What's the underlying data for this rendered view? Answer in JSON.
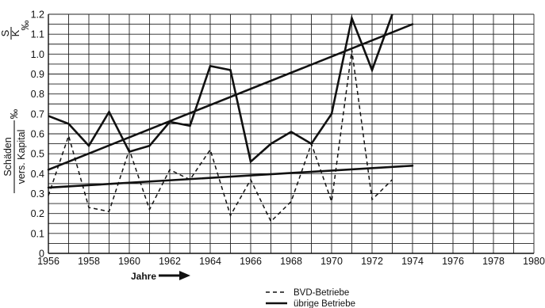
{
  "chart_data": {
    "type": "line",
    "xlim": [
      1956,
      1980
    ],
    "ylim": [
      0,
      1.2
    ],
    "x_ticks": [
      "1956",
      "1958",
      "1960",
      "1962",
      "1964",
      "1966",
      "1968",
      "1970",
      "1972",
      "1974",
      "1976",
      "1978",
      "1980"
    ],
    "y_ticks": [
      "0",
      "0.1",
      "0.2",
      "0.3",
      "0.4",
      "0.5",
      "0.6",
      "0.7",
      "0.8",
      "0.9",
      "1.0",
      "1.1",
      "1.2"
    ],
    "grid": true,
    "xlabel": "Jahre",
    "ylabel": {
      "top_fraction": {
        "numerator": "S",
        "denominator": "K",
        "unit": "‰"
      },
      "bottom_fraction": {
        "numerator": "Schäden",
        "denominator": "vers. Kapital",
        "unit": "‰"
      }
    },
    "series": [
      {
        "name": "BVD-Betriebe",
        "style": "dashed",
        "x": [
          1956,
          1957,
          1958,
          1959,
          1960,
          1961,
          1962,
          1963,
          1964,
          1965,
          1966,
          1967,
          1968,
          1969,
          1970,
          1971,
          1972,
          1973
        ],
        "y": [
          0.29,
          0.59,
          0.23,
          0.21,
          0.52,
          0.22,
          0.42,
          0.37,
          0.52,
          0.19,
          0.37,
          0.16,
          0.26,
          0.55,
          0.26,
          1.02,
          0.27,
          0.37
        ]
      },
      {
        "name": "übrige Betriebe",
        "style": "solid",
        "x": [
          1956,
          1957,
          1958,
          1959,
          1960,
          1961,
          1962,
          1963,
          1964,
          1965,
          1966,
          1967,
          1968,
          1969,
          1970,
          1971,
          1972,
          1973
        ],
        "y": [
          0.69,
          0.65,
          0.54,
          0.71,
          0.51,
          0.54,
          0.66,
          0.64,
          0.94,
          0.92,
          0.46,
          0.55,
          0.61,
          0.55,
          0.7,
          1.18,
          0.92,
          1.2
        ]
      }
    ],
    "trend_lines": [
      {
        "for": "übrige Betriebe",
        "x": [
          1956,
          1974
        ],
        "y": [
          0.42,
          1.15
        ]
      },
      {
        "for": "BVD-Betriebe",
        "x": [
          1956,
          1974
        ],
        "y": [
          0.33,
          0.44
        ]
      }
    ],
    "legend": {
      "position": "bottom-center"
    }
  }
}
